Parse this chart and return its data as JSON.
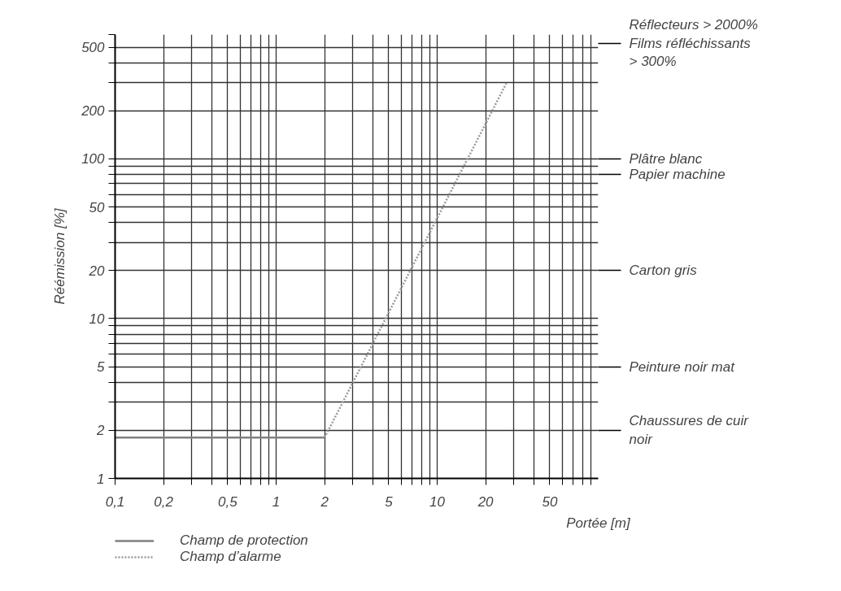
{
  "chart_data": {
    "type": "line",
    "xlabel": "Portée [m]",
    "ylabel": "Réémission [%]",
    "log": "xy",
    "grid": true,
    "legend": "bottom left",
    "marker": "none",
    "xlim": [
      0.1,
      100
    ],
    "ylim": [
      1,
      600
    ],
    "xticks": [
      {
        "value": 0.1,
        "label": "0,1"
      },
      {
        "value": 0.2,
        "label": "0,2"
      },
      {
        "value": 0.3,
        "label": null
      },
      {
        "value": 0.4,
        "label": null
      },
      {
        "value": 0.5,
        "label": "0,5"
      },
      {
        "value": 0.6,
        "label": null
      },
      {
        "value": 0.7,
        "label": null
      },
      {
        "value": 0.8,
        "label": null
      },
      {
        "value": 0.9,
        "label": null
      },
      1,
      2,
      {
        "value": 3,
        "label": null
      },
      {
        "value": 4,
        "label": null
      },
      5,
      {
        "value": 6,
        "label": null
      },
      {
        "value": 7,
        "label": null
      },
      {
        "value": 8,
        "label": null
      },
      {
        "value": 9,
        "label": null
      },
      10,
      20,
      {
        "value": 30,
        "label": null
      },
      {
        "value": 40,
        "label": null
      },
      50,
      {
        "value": 60,
        "label": null
      },
      {
        "value": 70,
        "label": null
      },
      {
        "value": 80,
        "label": null
      },
      {
        "value": 90,
        "label": null
      }
    ],
    "yticks": [
      1,
      2,
      {
        "value": 3,
        "label": null
      },
      {
        "value": 4,
        "label": null
      },
      5,
      {
        "value": 6,
        "label": null
      },
      {
        "value": 7,
        "label": null
      },
      {
        "value": 8,
        "label": null
      },
      {
        "value": 9,
        "label": null
      },
      10,
      20,
      {
        "value": 30,
        "label": null
      },
      {
        "value": 40,
        "label": null
      },
      50,
      {
        "value": 60,
        "label": null
      },
      {
        "value": 70,
        "label": null
      },
      {
        "value": 80,
        "label": null
      },
      {
        "value": 90,
        "label": null
      },
      100,
      200,
      {
        "value": 300,
        "label": null
      },
      {
        "value": 400,
        "label": null
      },
      500,
      {
        "value": 600,
        "label": null
      }
    ],
    "series": [
      {
        "name": "Champ de protection",
        "color": "#808080",
        "line_style": "solid",
        "x": [
          0.1,
          2
        ],
        "values": [
          1.8,
          1.8
        ]
      },
      {
        "name": "Champ d’alarme",
        "color": "#999999",
        "line_style": "dotted",
        "x": [
          2,
          27
        ],
        "values": [
          1.8,
          300
        ]
      }
    ],
    "ref_lines": [
      {
        "axis": "y",
        "value": 530,
        "label": "Réflecteurs > 2000%\nFilms réfléchissants\n> 300%"
      },
      {
        "axis": "y",
        "value": 100,
        "label": "Plâtre blanc"
      },
      {
        "axis": "y",
        "value": 80,
        "label": "Papier machine"
      },
      {
        "axis": "y",
        "value": 20,
        "label": "Carton gris"
      },
      {
        "axis": "y",
        "value": 5,
        "label": "Peinture noir mat"
      },
      {
        "axis": "y",
        "value": 2,
        "label": "Chaussures de cuir\nnoir"
      }
    ]
  }
}
